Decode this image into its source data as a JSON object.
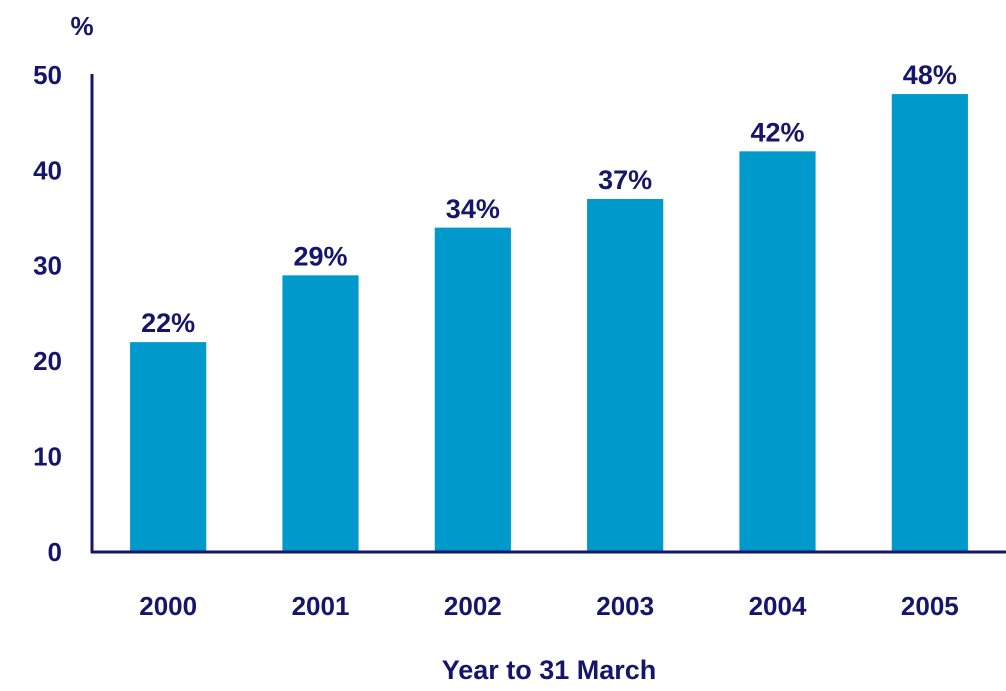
{
  "chart_data": {
    "type": "bar",
    "y_unit_label": "%",
    "x_axis_label": "Year to 31 March",
    "categories": [
      "2000",
      "2001",
      "2002",
      "2003",
      "2004",
      "2005"
    ],
    "values": [
      22,
      29,
      34,
      37,
      42,
      48
    ],
    "value_labels": [
      "22%",
      "29%",
      "34%",
      "37%",
      "42%",
      "48%"
    ],
    "color": "#0099cc",
    "ylim": [
      0,
      50
    ],
    "yticks": [
      0,
      10,
      20,
      30,
      40,
      50
    ],
    "grid": false
  }
}
